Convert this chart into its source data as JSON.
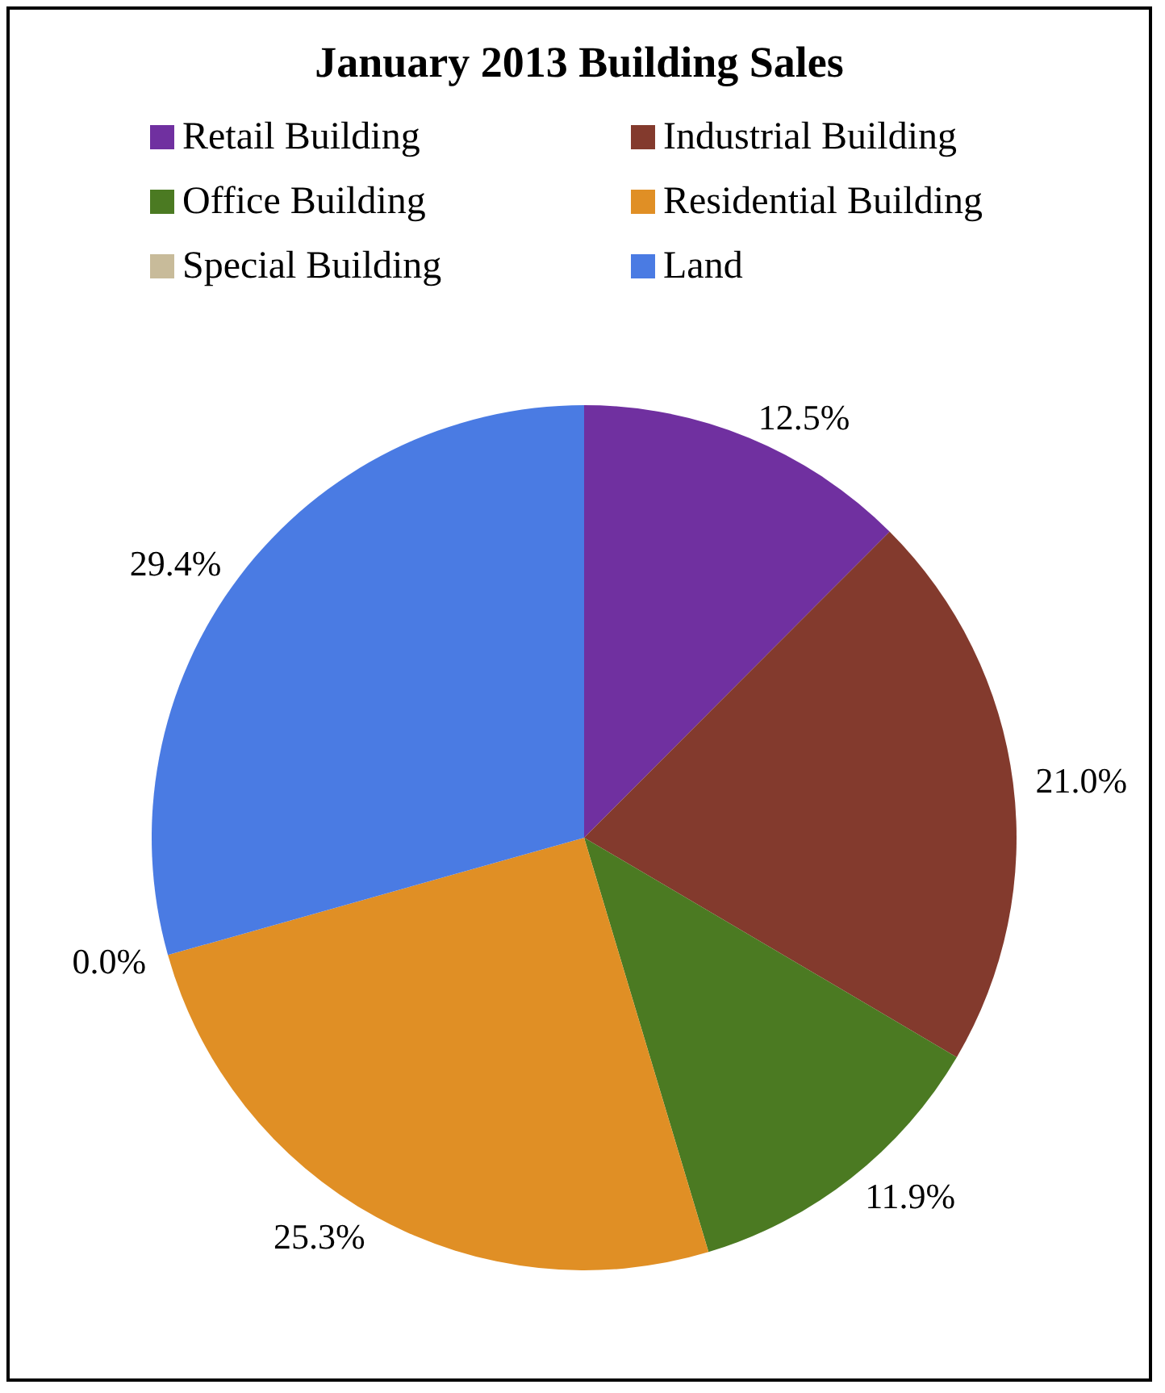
{
  "chart_data": {
    "type": "pie",
    "title": "January 2013 Building Sales",
    "categories": [
      "Retail Building",
      "Industrial Building",
      "Office Building",
      "Residential Building",
      "Special Building",
      "Land"
    ],
    "values": [
      12.5,
      21.0,
      11.9,
      25.3,
      0.0,
      29.4
    ],
    "value_labels": [
      "12.5%",
      "21.0%",
      "11.9%",
      "25.3%",
      "0.0%",
      "29.4%"
    ],
    "colors": [
      "#7030a0",
      "#833a2d",
      "#4b7a22",
      "#e08f25",
      "#c8bb9a",
      "#4a7be3"
    ],
    "legend": "top"
  }
}
